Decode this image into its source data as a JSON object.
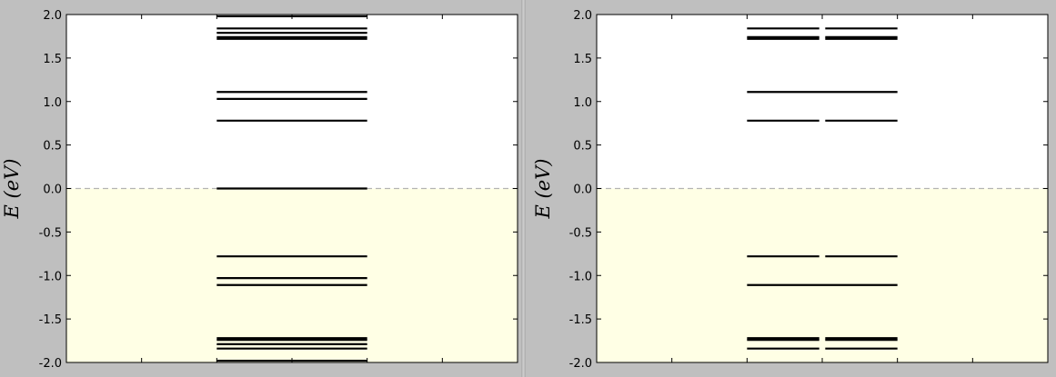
{
  "chart_data": [
    {
      "type": "line",
      "ylabel": "E (eV)",
      "ylim": [
        -2.0,
        2.0
      ],
      "yticks": [
        "2.0",
        "1.5",
        "1.0",
        "0.5",
        "0.0",
        "-0.5",
        "-1.0",
        "-1.5",
        "-2.0"
      ],
      "xlabel": "",
      "grid": false,
      "fermi_level": 0.0,
      "occupied_region_color": "#ffffe5",
      "fermi_line_color": "#b3b3b3",
      "level_color": "#000000",
      "levels": [
        {
          "x": [
            -1,
            1
          ],
          "energies": [
            1.98,
            1.84,
            1.79,
            1.74,
            1.72,
            1.11,
            1.03,
            0.78,
            0.0,
            -0.78,
            -1.03,
            -1.11,
            -1.72,
            -1.74,
            -1.79,
            -1.84,
            -1.98
          ]
        }
      ]
    },
    {
      "type": "line",
      "ylabel": "E (eV)",
      "ylim": [
        -2.0,
        2.0
      ],
      "yticks": [
        "2.0",
        "1.5",
        "1.0",
        "0.5",
        "0.0",
        "-0.5",
        "-1.0",
        "-1.5",
        "-2.0"
      ],
      "xlabel": "",
      "grid": false,
      "fermi_level": 0.0,
      "occupied_region_color": "#ffffe5",
      "fermi_line_color": "#b3b3b3",
      "level_color": "#000000",
      "levels": [
        {
          "x": [
            -1,
            1
          ],
          "energies": [
            1.11,
            -1.11
          ]
        },
        {
          "x": [
            -1,
            -0.04
          ],
          "energies": [
            1.84,
            1.74,
            1.72,
            0.78,
            -0.78,
            -1.72,
            -1.74,
            -1.84
          ]
        },
        {
          "x": [
            0.04,
            1
          ],
          "energies": [
            1.84,
            1.74,
            1.72,
            0.78,
            -0.78,
            -1.72,
            -1.74,
            -1.84
          ]
        }
      ]
    }
  ]
}
